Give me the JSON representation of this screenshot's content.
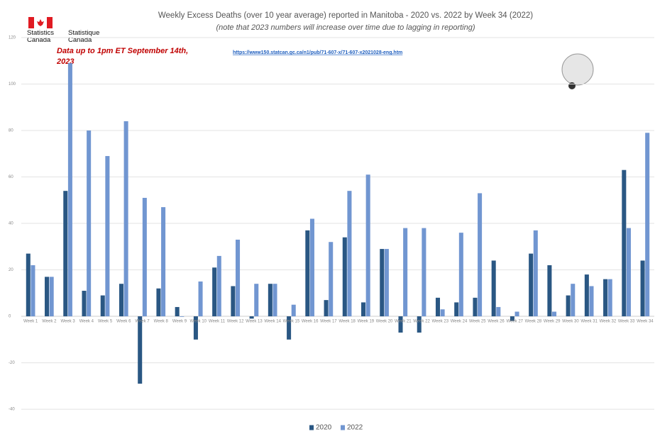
{
  "chart_data": {
    "type": "bar",
    "title": "Weekly Excess Deaths (over 10 year average) reported in Manitoba - 2020 vs. 2022 by Week 34 (2022)",
    "subtitle": "(note that 2023 numbers will increase over time due to lagging in reporting)",
    "annotation": "Data up to 1pm ET September 14th, 2023",
    "source_url": "https://www150.statcan.gc.ca/n1/pub/71-607-x/71-607-x2021028-eng.htm",
    "logo_en": "Statistics Canada",
    "logo_fr": "Statistique Canada",
    "categories": [
      "Week 1",
      "Week 2",
      "Week 3",
      "Week 4",
      "Week 5",
      "Week 6",
      "Week 7",
      "Week 8",
      "Week 9",
      "Week 10",
      "Week 11",
      "Week 12",
      "Week 13",
      "Week 14",
      "Week 15",
      "Week 16",
      "Week 17",
      "Week 18",
      "Week 19",
      "Week 20",
      "Week 21",
      "Week 22",
      "Week 23",
      "Week 24",
      "Week 25",
      "Week 26",
      "Week 27",
      "Week 28",
      "Week 29",
      "Week 30",
      "Week 31",
      "Week 32",
      "Week 33",
      "Week 34"
    ],
    "series": [
      {
        "name": "2020",
        "color": "#2a5783",
        "values": [
          27,
          17,
          54,
          11,
          9,
          14,
          -29,
          12,
          4,
          -10,
          21,
          13,
          -1,
          14,
          -10,
          37,
          7,
          34,
          6,
          29,
          -7,
          -7,
          8,
          6,
          8,
          24,
          -2,
          27,
          22,
          9,
          18,
          16,
          63,
          24
        ]
      },
      {
        "name": "2022",
        "color": "#7196d1",
        "values": [
          22,
          17,
          109,
          80,
          69,
          84,
          51,
          47,
          0,
          15,
          26,
          33,
          14,
          14,
          5,
          42,
          32,
          54,
          61,
          29,
          38,
          38,
          3,
          36,
          53,
          4,
          2,
          37,
          2,
          14,
          13,
          16,
          38,
          79
        ]
      }
    ],
    "ylim": [
      -47,
      120
    ],
    "yticks": [
      -40,
      -20,
      0,
      20,
      40,
      60,
      80,
      100,
      120
    ],
    "grid": true,
    "legend": "bottom"
  }
}
